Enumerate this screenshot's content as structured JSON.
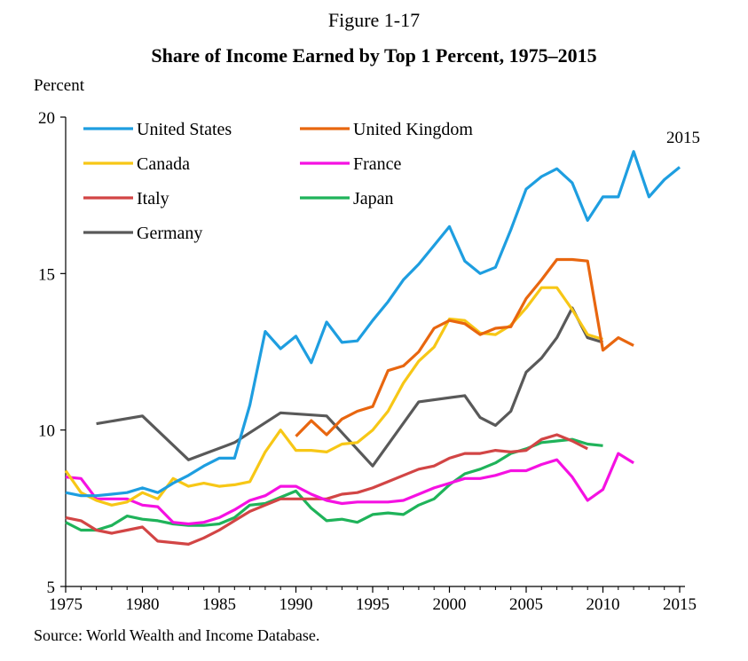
{
  "figure_label": "Figure 1-17",
  "chart_data": {
    "type": "line",
    "title": "Share of Income Earned by Top 1 Percent, 1975–2015",
    "ylabel": "Percent",
    "xlabel": "",
    "xlim": [
      1975,
      2015
    ],
    "ylim": [
      5,
      20
    ],
    "xticks": [
      1975,
      1980,
      1985,
      1990,
      1995,
      2000,
      2005,
      2010,
      2015
    ],
    "yticks": [
      5,
      10,
      15,
      20
    ],
    "annotation": "2015",
    "source": "Source: World Wealth and Income Database.",
    "series": [
      {
        "name": "United States",
        "color": "#1e9ee0",
        "x": [
          1975,
          1976,
          1977,
          1978,
          1979,
          1980,
          1981,
          1982,
          1983,
          1984,
          1985,
          1986,
          1987,
          1988,
          1989,
          1990,
          1991,
          1992,
          1993,
          1994,
          1995,
          1996,
          1997,
          1998,
          1999,
          2000,
          2001,
          2002,
          2003,
          2004,
          2005,
          2006,
          2007,
          2008,
          2009,
          2010,
          2011,
          2012,
          2013,
          2014,
          2015
        ],
        "y": [
          8.0,
          7.9,
          7.9,
          7.95,
          8.0,
          8.15,
          8.0,
          8.3,
          8.55,
          8.85,
          9.1,
          9.1,
          10.8,
          13.15,
          12.6,
          13.0,
          12.15,
          13.45,
          12.8,
          12.85,
          13.5,
          14.1,
          14.8,
          15.3,
          15.9,
          16.5,
          15.4,
          15.0,
          15.2,
          16.4,
          17.7,
          18.1,
          18.35,
          17.9,
          16.7,
          17.45,
          17.45,
          18.9,
          17.45,
          18.0,
          18.4
        ]
      },
      {
        "name": "United Kingdom",
        "color": "#e8660f",
        "x": [
          1990,
          1991,
          1992,
          1993,
          1994,
          1995,
          1996,
          1997,
          1998,
          1999,
          2000,
          2001,
          2002,
          2003,
          2004,
          2005,
          2006,
          2007,
          2008,
          2009,
          2010,
          2011,
          2012
        ],
        "y": [
          9.8,
          10.3,
          9.85,
          10.35,
          10.6,
          10.75,
          11.9,
          12.05,
          12.5,
          13.25,
          13.5,
          13.4,
          13.05,
          13.25,
          13.3,
          14.2,
          14.8,
          15.45,
          15.45,
          15.4,
          12.55,
          12.95,
          12.7
        ]
      },
      {
        "name": "Canada",
        "color": "#f7c716",
        "x": [
          1975,
          1976,
          1977,
          1978,
          1979,
          1980,
          1981,
          1982,
          1983,
          1984,
          1985,
          1986,
          1987,
          1988,
          1989,
          1990,
          1991,
          1992,
          1993,
          1994,
          1995,
          1996,
          1997,
          1998,
          1999,
          2000,
          2001,
          2002,
          2003,
          2004,
          2005,
          2006,
          2007,
          2008,
          2009,
          2010
        ],
        "y": [
          8.7,
          8.0,
          7.75,
          7.6,
          7.7,
          8.0,
          7.8,
          8.45,
          8.2,
          8.3,
          8.2,
          8.25,
          8.35,
          9.3,
          10.0,
          9.35,
          9.35,
          9.3,
          9.55,
          9.6,
          10.0,
          10.6,
          11.5,
          12.2,
          12.65,
          13.55,
          13.5,
          13.1,
          13.05,
          13.35,
          13.9,
          14.55,
          14.55,
          13.85,
          13.05,
          12.9
        ]
      },
      {
        "name": "France",
        "color": "#f511e2",
        "x": [
          1975,
          1976,
          1977,
          1978,
          1979,
          1980,
          1981,
          1982,
          1983,
          1984,
          1985,
          1986,
          1987,
          1988,
          1989,
          1990,
          1991,
          1992,
          1993,
          1994,
          1995,
          1996,
          1997,
          1998,
          1999,
          2000,
          2001,
          2002,
          2003,
          2004,
          2005,
          2006,
          2007,
          2008,
          2009,
          2010,
          2011,
          2012
        ],
        "y": [
          8.5,
          8.45,
          7.8,
          7.8,
          7.8,
          7.6,
          7.55,
          7.05,
          7.0,
          7.05,
          7.2,
          7.45,
          7.75,
          7.9,
          8.2,
          8.2,
          7.95,
          7.75,
          7.65,
          7.7,
          7.7,
          7.7,
          7.75,
          7.95,
          8.15,
          8.3,
          8.45,
          8.45,
          8.55,
          8.7,
          8.7,
          8.9,
          9.05,
          8.5,
          7.75,
          8.1,
          9.25,
          8.95
        ]
      },
      {
        "name": "Italy",
        "color": "#d24545",
        "x": [
          1975,
          1976,
          1977,
          1978,
          1979,
          1980,
          1981,
          1982,
          1983,
          1984,
          1985,
          1986,
          1987,
          1988,
          1989,
          1990,
          1991,
          1992,
          1993,
          1994,
          1995,
          1996,
          1997,
          1998,
          1999,
          2000,
          2001,
          2002,
          2003,
          2004,
          2005,
          2006,
          2007,
          2008,
          2009
        ],
        "y": [
          7.2,
          7.1,
          6.8,
          6.7,
          6.8,
          6.9,
          6.45,
          6.4,
          6.35,
          6.55,
          6.8,
          7.1,
          7.4,
          7.6,
          7.8,
          7.8,
          7.8,
          7.8,
          7.95,
          8.0,
          8.15,
          8.35,
          8.55,
          8.75,
          8.85,
          9.1,
          9.25,
          9.25,
          9.35,
          9.3,
          9.35,
          9.7,
          9.85,
          9.65,
          9.4
        ]
      },
      {
        "name": "Japan",
        "color": "#1fb35a",
        "x": [
          1975,
          1976,
          1977,
          1978,
          1979,
          1980,
          1981,
          1982,
          1983,
          1984,
          1985,
          1986,
          1987,
          1988,
          1989,
          1990,
          1991,
          1992,
          1993,
          1994,
          1995,
          1996,
          1997,
          1998,
          1999,
          2000,
          2001,
          2002,
          2003,
          2004,
          2005,
          2006,
          2007,
          2008,
          2009,
          2010
        ],
        "y": [
          7.05,
          6.8,
          6.8,
          6.95,
          7.25,
          7.15,
          7.1,
          7.0,
          6.95,
          6.95,
          7.0,
          7.2,
          7.6,
          7.65,
          7.85,
          8.05,
          7.5,
          7.1,
          7.15,
          7.05,
          7.3,
          7.35,
          7.3,
          7.6,
          7.8,
          8.25,
          8.6,
          8.75,
          8.95,
          9.25,
          9.4,
          9.6,
          9.65,
          9.7,
          9.55,
          9.5
        ]
      },
      {
        "name": "Germany",
        "color": "#595959",
        "x": [
          1977,
          1980,
          1983,
          1986,
          1989,
          1992,
          1995,
          1998,
          2001,
          2002,
          2003,
          2004,
          2005,
          2006,
          2007,
          2008,
          2009,
          2010
        ],
        "y": [
          10.2,
          10.45,
          9.05,
          9.6,
          10.55,
          10.45,
          8.85,
          10.9,
          11.1,
          10.4,
          10.15,
          10.6,
          11.85,
          12.3,
          12.95,
          13.9,
          12.95,
          12.8
        ]
      }
    ]
  }
}
